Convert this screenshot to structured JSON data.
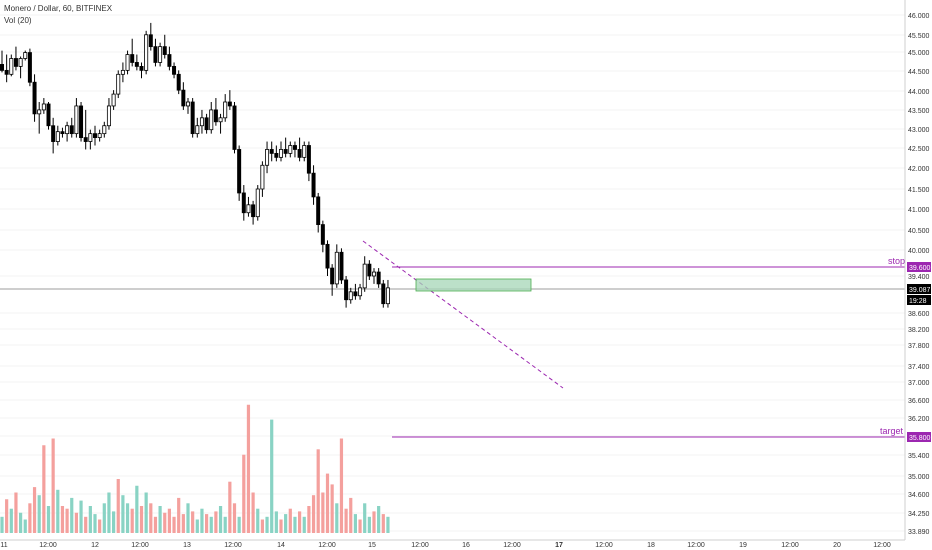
{
  "header": {
    "title": "Monero / Dollar, 60, BITFINEX",
    "volume_label": "Vol (20)"
  },
  "colors": {
    "up": "#ffffff",
    "down": "#000000",
    "vol_up": "#89d3c4",
    "vol_down": "#f4a09d",
    "purple": "#9c27b0",
    "zone_fill": "#a5d6b7",
    "zone_stroke": "#4caf50",
    "price_line": "#9e9e9e",
    "axis_text": "#333333"
  },
  "chart_data": {
    "type": "candlestick",
    "title": "Monero / Dollar, 60, BITFINEX",
    "y_ticks": [
      "46.000",
      "45.500",
      "45.000",
      "44.500",
      "44.000",
      "43.500",
      "43.000",
      "42.500",
      "42.000",
      "41.500",
      "41.000",
      "40.500",
      "40.000",
      "39.400",
      "38.600",
      "38.200",
      "37.800",
      "37.400",
      "37.000",
      "36.600",
      "36.200",
      "35.800",
      "35.400",
      "35.000",
      "34.600",
      "34.250",
      "33.890"
    ],
    "x_ticks": [
      "11",
      "12:00",
      "12",
      "12:00",
      "13",
      "12:00",
      "14",
      "12:00",
      "15",
      "12:00",
      "16",
      "12:00",
      "17",
      "12:00",
      "18",
      "12:00",
      "19",
      "12:00",
      "20",
      "12:00"
    ],
    "volume_axis": [
      "34.250",
      "33.890"
    ],
    "last_price": "39.087",
    "countdown": "19:28",
    "annotations": {
      "stop": {
        "label": "stop",
        "value": "39.600"
      },
      "target": {
        "label": "target",
        "value": "35.800"
      }
    },
    "candles": [
      {
        "o": 44.75,
        "h": 45.1,
        "l": 44.55,
        "c": 44.6
      },
      {
        "o": 44.6,
        "h": 45.0,
        "l": 44.3,
        "c": 44.5
      },
      {
        "o": 44.5,
        "h": 45.0,
        "l": 44.45,
        "c": 44.9
      },
      {
        "o": 44.9,
        "h": 45.2,
        "l": 44.6,
        "c": 44.7
      },
      {
        "o": 44.7,
        "h": 44.95,
        "l": 44.4,
        "c": 44.9
      },
      {
        "o": 44.9,
        "h": 45.1,
        "l": 44.85,
        "c": 45.05
      },
      {
        "o": 45.05,
        "h": 45.15,
        "l": 44.2,
        "c": 44.3
      },
      {
        "o": 44.3,
        "h": 44.5,
        "l": 43.3,
        "c": 43.5
      },
      {
        "o": 43.5,
        "h": 43.8,
        "l": 43.0,
        "c": 43.6
      },
      {
        "o": 43.6,
        "h": 43.9,
        "l": 43.5,
        "c": 43.75
      },
      {
        "o": 43.75,
        "h": 43.8,
        "l": 43.1,
        "c": 43.2
      },
      {
        "o": 43.2,
        "h": 43.4,
        "l": 42.5,
        "c": 42.8
      },
      {
        "o": 42.8,
        "h": 43.2,
        "l": 42.7,
        "c": 43.05
      },
      {
        "o": 43.05,
        "h": 43.15,
        "l": 42.9,
        "c": 43.0
      },
      {
        "o": 43.0,
        "h": 43.3,
        "l": 42.8,
        "c": 43.2
      },
      {
        "o": 43.2,
        "h": 43.4,
        "l": 42.9,
        "c": 43.0
      },
      {
        "o": 43.0,
        "h": 43.9,
        "l": 42.9,
        "c": 43.7
      },
      {
        "o": 43.7,
        "h": 43.8,
        "l": 42.8,
        "c": 42.9
      },
      {
        "o": 42.9,
        "h": 43.6,
        "l": 42.6,
        "c": 42.8
      },
      {
        "o": 42.8,
        "h": 43.1,
        "l": 42.6,
        "c": 43.0
      },
      {
        "o": 43.0,
        "h": 43.2,
        "l": 42.7,
        "c": 42.9
      },
      {
        "o": 42.9,
        "h": 43.1,
        "l": 42.8,
        "c": 43.0
      },
      {
        "o": 43.0,
        "h": 43.3,
        "l": 42.9,
        "c": 43.2
      },
      {
        "o": 43.2,
        "h": 43.9,
        "l": 43.1,
        "c": 43.7
      },
      {
        "o": 43.7,
        "h": 44.1,
        "l": 43.6,
        "c": 44.0
      },
      {
        "o": 44.0,
        "h": 44.6,
        "l": 43.9,
        "c": 44.5
      },
      {
        "o": 44.5,
        "h": 44.8,
        "l": 44.3,
        "c": 44.6
      },
      {
        "o": 44.6,
        "h": 45.1,
        "l": 44.5,
        "c": 45.0
      },
      {
        "o": 45.0,
        "h": 45.4,
        "l": 44.7,
        "c": 44.8
      },
      {
        "o": 44.8,
        "h": 45.0,
        "l": 44.6,
        "c": 44.7
      },
      {
        "o": 44.7,
        "h": 44.8,
        "l": 44.4,
        "c": 44.6
      },
      {
        "o": 44.6,
        "h": 45.6,
        "l": 44.5,
        "c": 45.5
      },
      {
        "o": 45.5,
        "h": 45.8,
        "l": 45.1,
        "c": 45.2
      },
      {
        "o": 45.2,
        "h": 45.4,
        "l": 44.7,
        "c": 44.8
      },
      {
        "o": 44.8,
        "h": 45.3,
        "l": 44.7,
        "c": 45.2
      },
      {
        "o": 45.2,
        "h": 45.5,
        "l": 44.9,
        "c": 45.0
      },
      {
        "o": 45.0,
        "h": 45.2,
        "l": 44.6,
        "c": 44.7
      },
      {
        "o": 44.7,
        "h": 44.8,
        "l": 44.4,
        "c": 44.5
      },
      {
        "o": 44.5,
        "h": 44.6,
        "l": 44.0,
        "c": 44.1
      },
      {
        "o": 44.1,
        "h": 44.3,
        "l": 43.6,
        "c": 43.7
      },
      {
        "o": 43.7,
        "h": 43.9,
        "l": 43.5,
        "c": 43.8
      },
      {
        "o": 43.8,
        "h": 43.9,
        "l": 42.9,
        "c": 43.0
      },
      {
        "o": 43.0,
        "h": 43.4,
        "l": 42.9,
        "c": 43.2
      },
      {
        "o": 43.2,
        "h": 43.6,
        "l": 43.0,
        "c": 43.4
      },
      {
        "o": 43.4,
        "h": 43.5,
        "l": 43.0,
        "c": 43.1
      },
      {
        "o": 43.1,
        "h": 43.8,
        "l": 43.0,
        "c": 43.6
      },
      {
        "o": 43.6,
        "h": 43.9,
        "l": 43.2,
        "c": 43.3
      },
      {
        "o": 43.3,
        "h": 43.5,
        "l": 43.0,
        "c": 43.4
      },
      {
        "o": 43.4,
        "h": 44.0,
        "l": 43.3,
        "c": 43.8
      },
      {
        "o": 43.8,
        "h": 44.1,
        "l": 43.6,
        "c": 43.7
      },
      {
        "o": 43.7,
        "h": 43.8,
        "l": 42.5,
        "c": 42.6
      },
      {
        "o": 42.6,
        "h": 42.7,
        "l": 41.3,
        "c": 41.5
      },
      {
        "o": 41.5,
        "h": 41.7,
        "l": 40.8,
        "c": 41.0
      },
      {
        "o": 41.0,
        "h": 41.4,
        "l": 40.9,
        "c": 41.2
      },
      {
        "o": 41.2,
        "h": 41.3,
        "l": 40.7,
        "c": 40.9
      },
      {
        "o": 40.9,
        "h": 41.7,
        "l": 40.8,
        "c": 41.6
      },
      {
        "o": 41.6,
        "h": 42.3,
        "l": 41.4,
        "c": 42.2
      },
      {
        "o": 42.2,
        "h": 42.8,
        "l": 42.0,
        "c": 42.6
      },
      {
        "o": 42.6,
        "h": 42.8,
        "l": 42.3,
        "c": 42.5
      },
      {
        "o": 42.5,
        "h": 42.7,
        "l": 42.3,
        "c": 42.4
      },
      {
        "o": 42.4,
        "h": 42.8,
        "l": 42.3,
        "c": 42.6
      },
      {
        "o": 42.6,
        "h": 42.9,
        "l": 42.4,
        "c": 42.5
      },
      {
        "o": 42.5,
        "h": 42.8,
        "l": 42.4,
        "c": 42.7
      },
      {
        "o": 42.7,
        "h": 42.8,
        "l": 42.4,
        "c": 42.6
      },
      {
        "o": 42.6,
        "h": 42.9,
        "l": 42.3,
        "c": 42.4
      },
      {
        "o": 42.4,
        "h": 42.8,
        "l": 42.3,
        "c": 42.7
      },
      {
        "o": 42.7,
        "h": 42.8,
        "l": 41.8,
        "c": 42.0
      },
      {
        "o": 42.0,
        "h": 42.2,
        "l": 41.2,
        "c": 41.4
      },
      {
        "o": 41.4,
        "h": 41.5,
        "l": 40.5,
        "c": 40.7
      },
      {
        "o": 40.7,
        "h": 40.8,
        "l": 40.0,
        "c": 40.2
      },
      {
        "o": 40.2,
        "h": 40.3,
        "l": 39.4,
        "c": 39.6
      },
      {
        "o": 39.6,
        "h": 39.7,
        "l": 38.9,
        "c": 39.2
      },
      {
        "o": 39.2,
        "h": 40.2,
        "l": 39.1,
        "c": 40.0
      },
      {
        "o": 40.0,
        "h": 40.1,
        "l": 39.2,
        "c": 39.3
      },
      {
        "o": 39.3,
        "h": 39.4,
        "l": 38.6,
        "c": 38.8
      },
      {
        "o": 38.8,
        "h": 39.1,
        "l": 38.7,
        "c": 39.0
      },
      {
        "o": 39.0,
        "h": 39.2,
        "l": 38.8,
        "c": 38.9
      },
      {
        "o": 38.9,
        "h": 39.2,
        "l": 38.8,
        "c": 39.1
      },
      {
        "o": 39.1,
        "h": 39.9,
        "l": 39.0,
        "c": 39.7
      },
      {
        "o": 39.7,
        "h": 39.8,
        "l": 39.3,
        "c": 39.4
      },
      {
        "o": 39.4,
        "h": 39.6,
        "l": 39.2,
        "c": 39.5
      },
      {
        "o": 39.5,
        "h": 39.6,
        "l": 39.1,
        "c": 39.2
      },
      {
        "o": 39.2,
        "h": 39.3,
        "l": 38.6,
        "c": 38.7
      },
      {
        "o": 38.7,
        "h": 39.3,
        "l": 38.6,
        "c": 39.1
      }
    ],
    "volume": [
      0.12,
      0.25,
      0.18,
      0.3,
      0.15,
      0.1,
      0.22,
      0.34,
      0.28,
      0.65,
      0.2,
      0.7,
      0.32,
      0.2,
      0.18,
      0.26,
      0.15,
      0.24,
      0.12,
      0.2,
      0.14,
      0.1,
      0.22,
      0.3,
      0.16,
      0.4,
      0.28,
      0.22,
      0.18,
      0.35,
      0.2,
      0.3,
      0.22,
      0.12,
      0.2,
      0.15,
      0.18,
      0.12,
      0.26,
      0.14,
      0.22,
      0.16,
      0.1,
      0.18,
      0.14,
      0.12,
      0.16,
      0.2,
      0.12,
      0.38,
      0.22,
      0.12,
      0.58,
      0.95,
      0.3,
      0.18,
      0.1,
      0.12,
      0.84,
      0.16,
      0.1,
      0.14,
      0.18,
      0.12,
      0.16,
      0.12,
      0.2,
      0.28,
      0.62,
      0.3,
      0.44,
      0.36,
      0.22,
      0.7,
      0.18,
      0.26,
      0.14,
      0.1,
      0.22,
      0.12,
      0.16,
      0.2,
      0.14,
      0.12
    ],
    "volume_up": [
      1,
      0,
      1,
      0,
      1,
      1,
      0,
      0,
      1,
      0,
      1,
      0,
      1,
      0,
      0,
      1,
      0,
      1,
      0,
      1,
      1,
      0,
      1,
      1,
      1,
      0,
      1,
      1,
      0,
      1,
      0,
      1,
      0,
      0,
      1,
      0,
      0,
      0,
      0,
      0,
      1,
      0,
      1,
      1,
      0,
      1,
      0,
      1,
      1,
      0,
      0,
      1,
      0,
      0,
      0,
      1,
      0,
      1,
      1,
      1,
      0,
      1,
      0,
      1,
      0,
      1,
      0,
      0,
      0,
      0,
      0,
      0,
      1,
      0,
      0,
      0,
      1,
      0,
      1,
      1,
      0,
      1,
      0,
      1
    ]
  }
}
